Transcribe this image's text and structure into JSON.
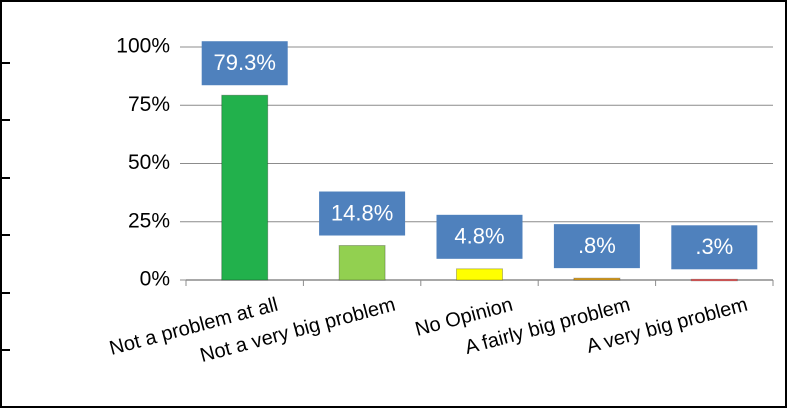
{
  "chart_data": {
    "type": "bar",
    "categories": [
      "Not a problem at all",
      "Not a very big problem",
      "No Opinion",
      "A fairly big problem",
      "A very big problem"
    ],
    "values": [
      79.3,
      14.8,
      4.8,
      0.8,
      0.3
    ],
    "value_labels": [
      "79.3%",
      "14.8%",
      "4.8%",
      ".8%",
      ".3%"
    ],
    "colors": [
      "#22b14c",
      "#92d050",
      "#ffff00",
      "#e3a21a",
      "#ff5050"
    ],
    "ylim": [
      0,
      100
    ],
    "yticks": [
      {
        "value": 0,
        "label": "0%"
      },
      {
        "value": 25,
        "label": "25%"
      },
      {
        "value": 50,
        "label": "50%"
      },
      {
        "value": 75,
        "label": "75%"
      },
      {
        "value": 100,
        "label": "100%"
      }
    ],
    "grid": true
  }
}
